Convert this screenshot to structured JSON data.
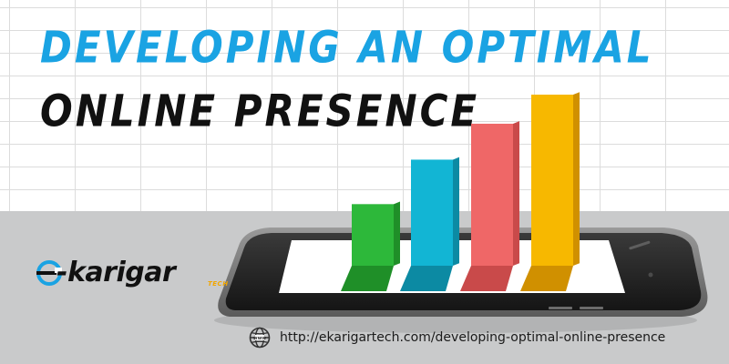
{
  "headline": {
    "line1": "DEVELOPING AN OPTIMAL",
    "line2": "ONLINE PRESENCE"
  },
  "logo": {
    "wordmark": "-karigar",
    "suffix": "TECH"
  },
  "footer": {
    "url": "http://ekarigartech.com/developing-optimal-online-presence",
    "icon": "globe-icon"
  },
  "colors": {
    "headline_blue": "#1aa3e3",
    "headline_black": "#111111",
    "bar_green": "#2db83a",
    "bar_cyan": "#12b5d4",
    "bar_red": "#ef6767",
    "bar_yellow": "#f7b800",
    "logo_accent": "#1aa3e3",
    "tech_yellow": "#f2a600"
  },
  "bars": [
    {
      "color": "#2db83a",
      "shade": "#1f8f28",
      "level": 0.36
    },
    {
      "color": "#12b5d4",
      "shade": "#0c8aa3",
      "level": 0.62
    },
    {
      "color": "#ef6767",
      "shade": "#c94a4a",
      "level": 0.83
    },
    {
      "color": "#f7b800",
      "shade": "#d09000",
      "level": 1.0
    }
  ]
}
